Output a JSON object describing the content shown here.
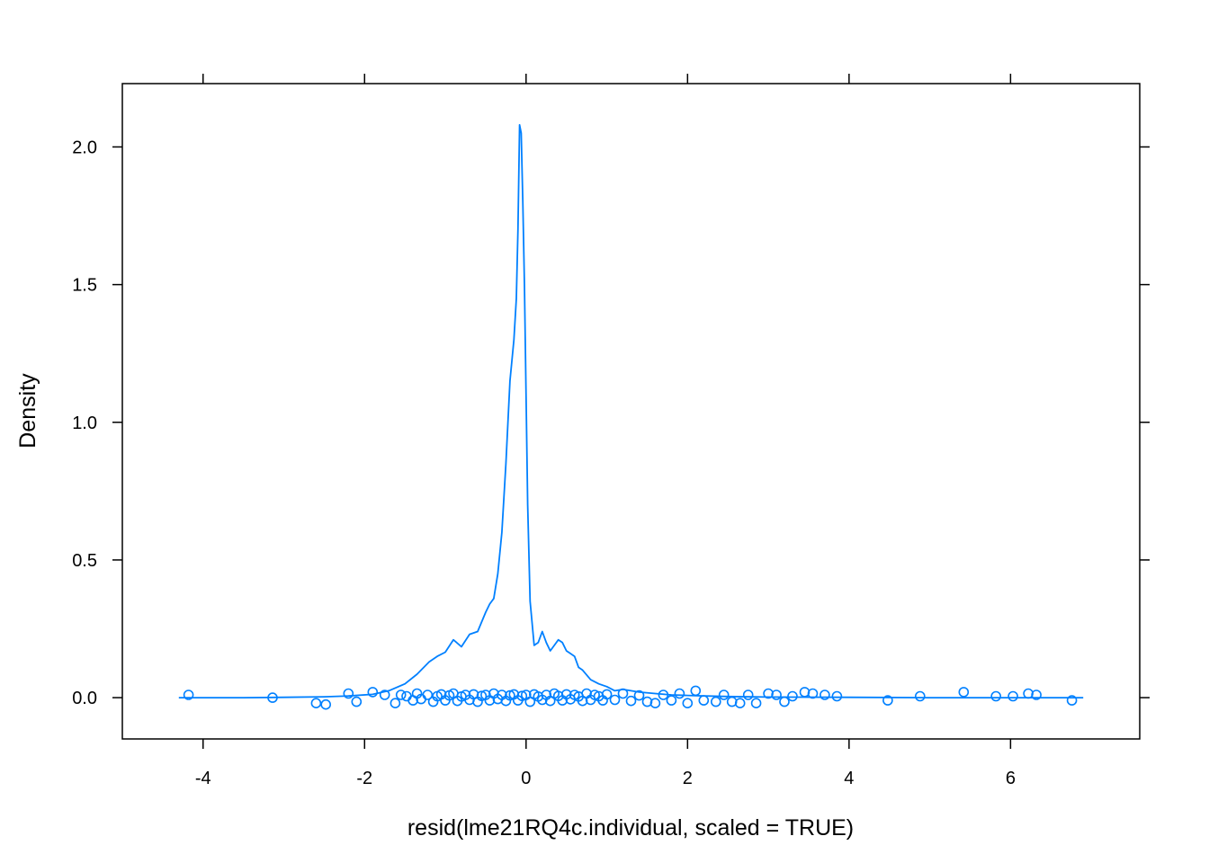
{
  "chart_data": {
    "type": "line",
    "title": "",
    "xlabel": "resid(lme21RQ4c.individual, scaled = TRUE)",
    "ylabel": "Density",
    "xlim": [
      -5,
      7.6
    ],
    "ylim": [
      -0.15,
      2.23
    ],
    "x_ticks": [
      -4,
      -2,
      0,
      2,
      4,
      6
    ],
    "x_tick_labels": [
      "-4",
      "-2",
      "0",
      "2",
      "4",
      "6"
    ],
    "y_ticks": [
      0.0,
      0.5,
      1.0,
      1.5,
      2.0
    ],
    "y_tick_labels": [
      "0.0",
      "0.5",
      "1.0",
      "1.5",
      "2.0"
    ],
    "grid": false,
    "color": "#0080FF",
    "density_curve": {
      "x": [
        -4.3,
        -3.5,
        -3.0,
        -2.5,
        -2.2,
        -1.9,
        -1.7,
        -1.5,
        -1.35,
        -1.2,
        -1.1,
        -1.0,
        -0.9,
        -0.8,
        -0.7,
        -0.6,
        -0.5,
        -0.45,
        -0.4,
        -0.35,
        -0.3,
        -0.25,
        -0.2,
        -0.15,
        -0.12,
        -0.1,
        -0.08,
        -0.06,
        -0.04,
        -0.02,
        0.0,
        0.02,
        0.05,
        0.1,
        0.15,
        0.2,
        0.25,
        0.3,
        0.35,
        0.4,
        0.45,
        0.5,
        0.55,
        0.6,
        0.65,
        0.7,
        0.8,
        0.9,
        1.0,
        1.1,
        1.2,
        1.4,
        1.6,
        1.8,
        2.0,
        2.5,
        3.0,
        4.0,
        5.0,
        6.0,
        6.9
      ],
      "y": [
        0.0,
        0.0,
        0.001,
        0.003,
        0.006,
        0.012,
        0.025,
        0.05,
        0.085,
        0.13,
        0.15,
        0.165,
        0.21,
        0.185,
        0.23,
        0.24,
        0.31,
        0.34,
        0.36,
        0.45,
        0.6,
        0.85,
        1.15,
        1.3,
        1.45,
        1.7,
        2.08,
        2.05,
        1.8,
        1.5,
        1.1,
        0.7,
        0.35,
        0.19,
        0.2,
        0.24,
        0.2,
        0.17,
        0.19,
        0.21,
        0.2,
        0.17,
        0.16,
        0.15,
        0.11,
        0.1,
        0.065,
        0.05,
        0.04,
        0.025,
        0.03,
        0.02,
        0.015,
        0.01,
        0.008,
        0.004,
        0.002,
        0.001,
        0.0,
        0.0,
        0.0
      ]
    },
    "residual_points": {
      "x": [
        -4.18,
        -3.14,
        -2.6,
        -2.48,
        -2.2,
        -2.1,
        -1.9,
        -1.75,
        -1.62,
        -1.55,
        -1.48,
        -1.4,
        -1.35,
        -1.3,
        -1.22,
        -1.15,
        -1.1,
        -1.05,
        -1.0,
        -0.95,
        -0.9,
        -0.85,
        -0.8,
        -0.75,
        -0.7,
        -0.65,
        -0.6,
        -0.55,
        -0.5,
        -0.45,
        -0.4,
        -0.35,
        -0.3,
        -0.25,
        -0.2,
        -0.15,
        -0.1,
        -0.05,
        0.0,
        0.05,
        0.1,
        0.15,
        0.2,
        0.25,
        0.3,
        0.35,
        0.4,
        0.45,
        0.5,
        0.55,
        0.6,
        0.65,
        0.7,
        0.75,
        0.8,
        0.85,
        0.9,
        0.95,
        1.0,
        1.1,
        1.2,
        1.3,
        1.4,
        1.5,
        1.6,
        1.7,
        1.8,
        1.9,
        2.0,
        2.1,
        2.2,
        2.35,
        2.45,
        2.55,
        2.65,
        2.75,
        2.85,
        3.0,
        3.1,
        3.2,
        3.3,
        3.45,
        3.55,
        3.7,
        3.85,
        4.48,
        4.88,
        5.42,
        5.82,
        6.03,
        6.22,
        6.32,
        6.76
      ],
      "y": [
        0.01,
        0.0,
        -0.02,
        -0.025,
        0.015,
        -0.015,
        0.02,
        0.01,
        -0.02,
        0.01,
        0.005,
        -0.01,
        0.015,
        -0.005,
        0.01,
        -0.015,
        0.005,
        0.012,
        -0.01,
        0.008,
        0.015,
        -0.012,
        0.004,
        0.01,
        -0.008,
        0.012,
        -0.015,
        0.006,
        0.01,
        -0.01,
        0.015,
        -0.005,
        0.01,
        -0.012,
        0.008,
        0.012,
        -0.01,
        0.006,
        0.01,
        -0.015,
        0.012,
        0.004,
        -0.008,
        0.01,
        -0.012,
        0.015,
        0.006,
        -0.01,
        0.012,
        -0.006,
        0.01,
        0.004,
        -0.012,
        0.015,
        -0.008,
        0.01,
        0.005,
        -0.01,
        0.012,
        -0.008,
        0.015,
        -0.012,
        0.008,
        -0.015,
        -0.02,
        0.01,
        -0.01,
        0.015,
        -0.02,
        0.025,
        -0.01,
        -0.015,
        0.01,
        -0.015,
        -0.02,
        0.01,
        -0.02,
        0.015,
        0.01,
        -0.015,
        0.005,
        0.02,
        0.015,
        0.01,
        0.005,
        -0.01,
        0.005,
        0.02,
        0.005,
        0.005,
        0.015,
        0.01,
        -0.01
      ]
    }
  }
}
